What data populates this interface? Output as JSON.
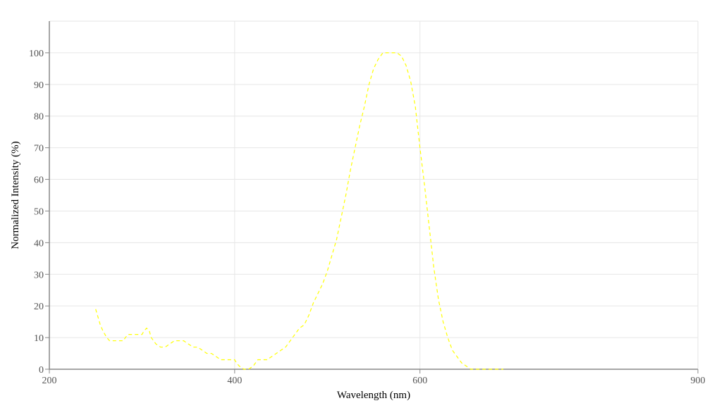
{
  "chart_data": {
    "type": "line",
    "title": "",
    "xlabel": "Wavelength (nm)",
    "ylabel": "Normalized Intensity (%)",
    "xlim": [
      200,
      900
    ],
    "ylim": [
      0,
      110
    ],
    "xticks": [
      200,
      400,
      600,
      900
    ],
    "yticks": [
      0,
      10,
      20,
      30,
      40,
      50,
      60,
      70,
      80,
      90,
      100
    ],
    "grid": true,
    "legend": "none",
    "series": [
      {
        "color": "#ffff00",
        "line_style": "dashed",
        "x": [
          250,
          252,
          255,
          258,
          260,
          262,
          265,
          270,
          275,
          280,
          282,
          285,
          290,
          295,
          300,
          302,
          305,
          308,
          310,
          315,
          320,
          325,
          330,
          335,
          340,
          345,
          350,
          355,
          360,
          365,
          370,
          375,
          380,
          385,
          390,
          395,
          400,
          402,
          405,
          410,
          415,
          420,
          425,
          430,
          435,
          440,
          445,
          450,
          455,
          460,
          465,
          470,
          475,
          480,
          485,
          490,
          495,
          500,
          505,
          510,
          515,
          520,
          525,
          530,
          535,
          540,
          545,
          550,
          555,
          560,
          565,
          570,
          575,
          580,
          585,
          590,
          595,
          600,
          605,
          610,
          615,
          620,
          625,
          630,
          635,
          640,
          645,
          650,
          655,
          660,
          665,
          670,
          675,
          680,
          685,
          690
        ],
        "y": [
          19,
          17,
          14,
          12,
          11,
          10,
          9,
          9,
          9,
          9,
          10,
          11,
          11,
          11,
          11,
          12,
          13,
          12,
          10,
          8,
          7,
          7,
          8,
          9,
          9,
          9,
          8,
          7,
          7,
          6,
          5,
          5,
          4,
          3,
          3,
          3,
          3,
          2,
          1,
          0,
          0,
          1,
          3,
          3,
          3,
          4,
          5,
          6,
          7,
          9,
          11,
          13,
          14,
          17,
          21,
          24,
          27,
          31,
          36,
          41,
          48,
          55,
          63,
          70,
          77,
          83,
          90,
          95,
          98,
          100,
          100,
          100,
          100,
          99,
          96,
          91,
          83,
          70,
          58,
          45,
          32,
          22,
          15,
          10,
          6,
          4,
          2,
          1,
          0,
          0,
          0,
          0,
          0,
          0,
          0,
          0
        ]
      }
    ]
  }
}
